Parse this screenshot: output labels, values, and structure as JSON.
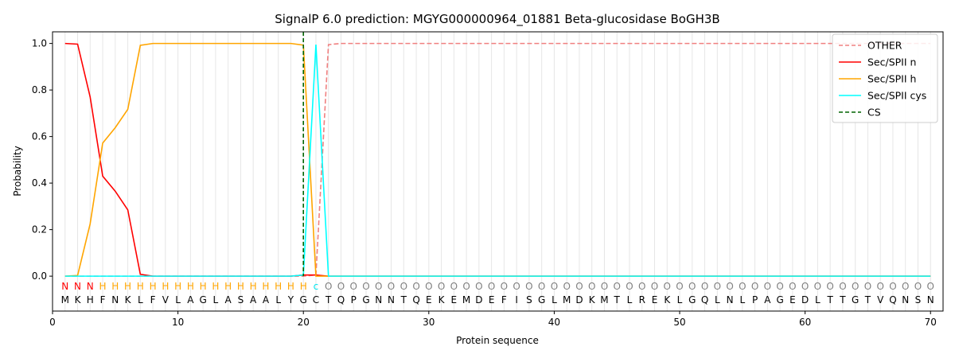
{
  "chart_data": {
    "type": "line",
    "title": "SignalP 6.0 prediction: MGYG000000964_01881 Beta-glucosidase BoGH3B",
    "xlabel": "Protein sequence",
    "ylabel": "Probability",
    "xlim": [
      0,
      71
    ],
    "ylim": [
      -0.15,
      1.05
    ],
    "xticks": [
      "0",
      "10",
      "20",
      "30",
      "40",
      "50",
      "60",
      "70"
    ],
    "yticks": [
      "0.0",
      "0.2",
      "0.4",
      "0.6",
      "0.8",
      "1.0"
    ],
    "grid": "vertical lines at each residue",
    "legend_position": "top-right",
    "sequence": [
      "M",
      "K",
      "H",
      "F",
      "N",
      "K",
      "L",
      "F",
      "V",
      "L",
      "A",
      "G",
      "L",
      "A",
      "S",
      "A",
      "A",
      "L",
      "Y",
      "G",
      "C",
      "T",
      "Q",
      "P",
      "G",
      "N",
      "N",
      "T",
      "Q",
      "E",
      "K",
      "E",
      "M",
      "D",
      "E",
      "F",
      "I",
      "S",
      "G",
      "L",
      "M",
      "D",
      "K",
      "M",
      "T",
      "L",
      "R",
      "E",
      "K",
      "L",
      "G",
      "Q",
      "L",
      "N",
      "L",
      "P",
      "A",
      "G",
      "E",
      "D",
      "L",
      "T",
      "T",
      "G",
      "T",
      "V",
      "Q",
      "N",
      "S",
      "N"
    ],
    "labels": [
      "N",
      "N",
      "N",
      "H",
      "H",
      "H",
      "H",
      "H",
      "H",
      "H",
      "H",
      "H",
      "H",
      "H",
      "H",
      "H",
      "H",
      "H",
      "H",
      "H",
      "c",
      "O",
      "O",
      "O",
      "O",
      "O",
      "O",
      "O",
      "O",
      "O",
      "O",
      "O",
      "O",
      "O",
      "O",
      "O",
      "O",
      "O",
      "O",
      "O",
      "O",
      "O",
      "O",
      "O",
      "O",
      "O",
      "O",
      "O",
      "O",
      "O",
      "O",
      "O",
      "O",
      "O",
      "O",
      "O",
      "O",
      "O",
      "O",
      "O",
      "O",
      "O",
      "O",
      "O",
      "O",
      "O",
      "O",
      "O",
      "O",
      "O"
    ],
    "label_colors": {
      "N": "#ff0000",
      "H": "#ffa500",
      "c": "#00e5ee",
      "O": "#808080"
    },
    "series": [
      {
        "name": "OTHER",
        "color": "#f08080",
        "dash": "dashed",
        "x": [
          1,
          20,
          21,
          22,
          23,
          70
        ],
        "y": [
          0.0,
          0.0,
          0.005,
          0.995,
          1.0,
          1.0
        ]
      },
      {
        "name": "Sec/SPII n",
        "color": "#ff0000",
        "dash": "solid",
        "x": [
          1,
          2,
          3,
          4,
          5,
          6,
          7,
          8,
          19,
          20,
          21,
          22,
          70
        ],
        "y": [
          1.0,
          0.997,
          0.77,
          0.43,
          0.365,
          0.285,
          0.008,
          0.0,
          0.0,
          0.005,
          0.005,
          0.0,
          0.0
        ]
      },
      {
        "name": "Sec/SPII h",
        "color": "#ffa500",
        "dash": "solid",
        "x": [
          1,
          2,
          3,
          4,
          5,
          6,
          7,
          8,
          19,
          20,
          21,
          22,
          70
        ],
        "y": [
          0.0,
          0.003,
          0.225,
          0.572,
          0.638,
          0.717,
          0.992,
          1.0,
          1.0,
          0.993,
          0.0,
          0.0,
          0.0
        ]
      },
      {
        "name": "Sec/SPII cys",
        "color": "#00ffff",
        "dash": "solid",
        "x": [
          1,
          19,
          20,
          21,
          22,
          70
        ],
        "y": [
          0.0,
          0.0,
          0.005,
          0.995,
          0.0,
          0.0
        ]
      },
      {
        "name": "CS",
        "color": "#006400",
        "dash": "dashed",
        "vline_x": 20
      }
    ]
  }
}
